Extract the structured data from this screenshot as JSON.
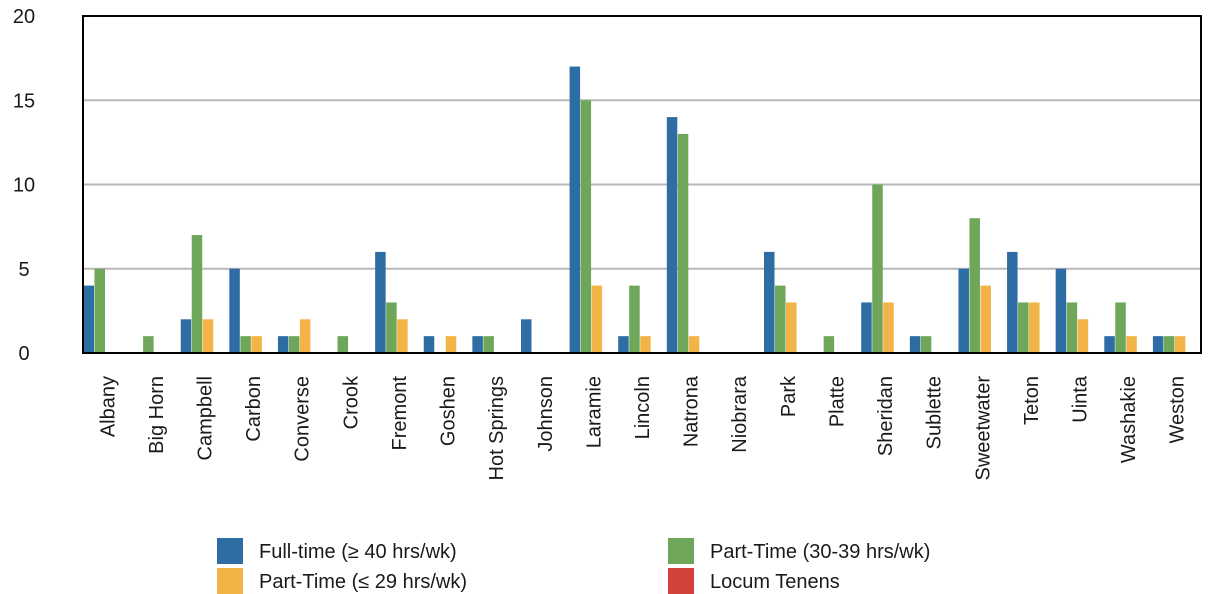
{
  "chart_data": {
    "type": "bar",
    "title": "",
    "xlabel": "",
    "ylabel": "",
    "ylim": [
      0,
      20
    ],
    "yticks": [
      0,
      5,
      10,
      15,
      20
    ],
    "grid": true,
    "legend_position": "bottom",
    "categories": [
      "Albany",
      "Big Horn",
      "Campbell",
      "Carbon",
      "Converse",
      "Crook",
      "Fremont",
      "Goshen",
      "Hot Springs",
      "Johnson",
      "Laramie",
      "Lincoln",
      "Natrona",
      "Niobrara",
      "Park",
      "Platte",
      "Sheridan",
      "Sublette",
      "Sweetwater",
      "Teton",
      "Uinta",
      "Washakie",
      "Weston"
    ],
    "series": [
      {
        "name": "Full-time (≥ 40 hrs/wk)",
        "color": "#2e6ca4",
        "values": [
          4,
          0,
          2,
          5,
          1,
          0,
          6,
          1,
          1,
          2,
          17,
          1,
          14,
          0,
          6,
          0,
          3,
          1,
          5,
          6,
          5,
          1,
          1
        ]
      },
      {
        "name": "Part-Time (30-39 hrs/wk)",
        "color": "#6ea65a",
        "values": [
          5,
          1,
          7,
          1,
          1,
          1,
          3,
          0,
          1,
          0,
          15,
          4,
          13,
          0,
          4,
          1,
          10,
          1,
          8,
          3,
          3,
          3,
          1
        ]
      },
      {
        "name": "Part-Time (≤ 29 hrs/wk)",
        "color": "#f2b347",
        "values": [
          0,
          0,
          2,
          1,
          2,
          0,
          2,
          1,
          0,
          0,
          4,
          1,
          1,
          0,
          3,
          0,
          3,
          0,
          4,
          3,
          2,
          1,
          1
        ]
      },
      {
        "name": "Locum Tenens",
        "color": "#d2423a",
        "values": [
          0,
          0,
          0,
          0,
          0,
          0,
          0,
          0,
          0,
          0,
          0,
          0,
          0,
          0,
          0,
          0,
          0,
          0,
          0,
          0,
          0,
          0,
          0
        ]
      }
    ]
  }
}
